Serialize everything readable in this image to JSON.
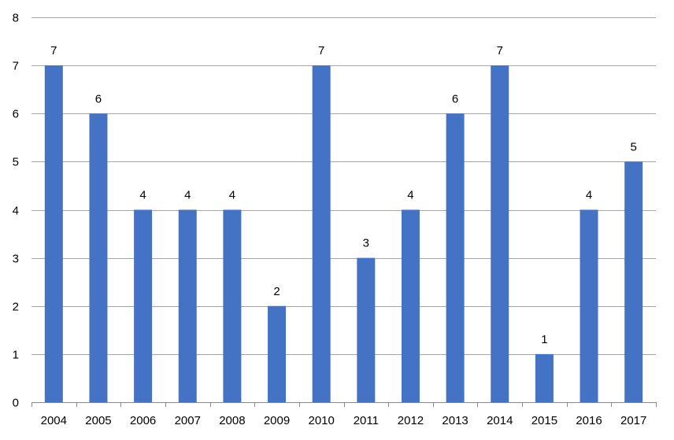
{
  "chart_data": {
    "type": "bar",
    "title": "",
    "xlabel": "",
    "ylabel": "",
    "categories": [
      "2004",
      "2005",
      "2006",
      "2007",
      "2008",
      "2009",
      "2010",
      "2011",
      "2012",
      "2013",
      "2014",
      "2015",
      "2016",
      "2017"
    ],
    "values": [
      7,
      6,
      4,
      4,
      4,
      2,
      7,
      3,
      4,
      6,
      7,
      1,
      4,
      5
    ],
    "ylim": [
      0,
      8
    ],
    "yticks": [
      "0",
      "1",
      "2",
      "3",
      "4",
      "5",
      "6",
      "7",
      "8"
    ],
    "grid": true,
    "legend": "none",
    "bar_color": "#4472c4"
  }
}
